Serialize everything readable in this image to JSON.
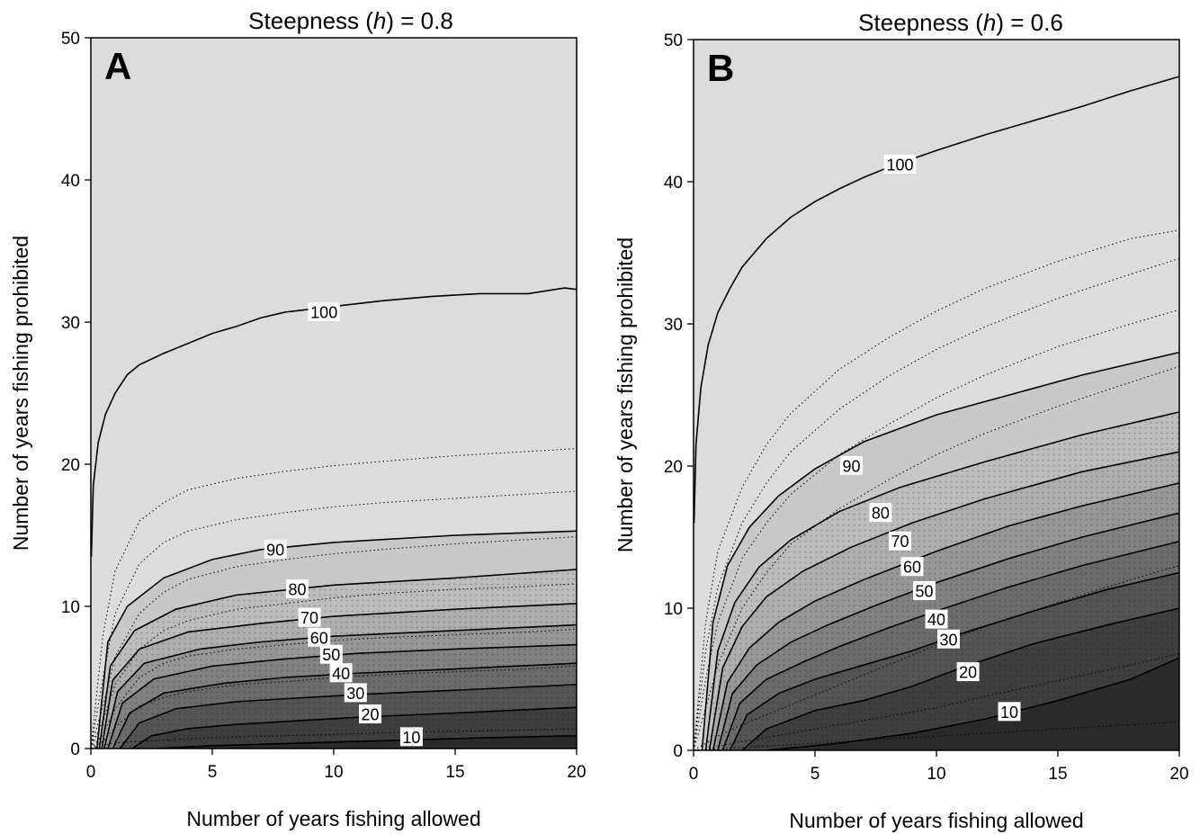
{
  "colors": {
    "background": "#ffffff",
    "frame": "#000000",
    "band_fills": [
      "#2a2a2a",
      "#3f3f3f",
      "#545454",
      "#6b6b6b",
      "#818181",
      "#979797",
      "#adadad",
      "#bdbdbd",
      "#c8c8c8",
      "#dcdcdc"
    ]
  },
  "chart_data": [
    {
      "type": "contour",
      "panel_letter": "A",
      "title_prefix": "Steepness (",
      "title_var": "h",
      "title_suffix": ") = 0.8",
      "xlabel": "Number of years fishing allowed",
      "ylabel": "Number of years fishing prohibited",
      "xlim": [
        0,
        20
      ],
      "ylim": [
        0,
        50
      ],
      "xticks": [
        0,
        5,
        10,
        15,
        20
      ],
      "yticks": [
        0,
        10,
        20,
        30,
        40,
        50
      ],
      "fill_levels": [
        10,
        20,
        30,
        40,
        50,
        60,
        70,
        80,
        90,
        100
      ],
      "contour_levels": [
        {
          "label": "10",
          "x": [
            2.7,
            5,
            8,
            10,
            13,
            16,
            20
          ],
          "y": [
            0,
            0.2,
            0.35,
            0.45,
            0.6,
            0.75,
            0.9
          ]
        },
        {
          "label": "20",
          "x": [
            1.7,
            2.5,
            4,
            6,
            8,
            11,
            15,
            20
          ],
          "y": [
            0,
            0.9,
            1.4,
            1.7,
            1.9,
            2.2,
            2.5,
            2.9
          ]
        },
        {
          "label": "30",
          "x": [
            1.2,
            2,
            3.5,
            6,
            9,
            11,
            15,
            20
          ],
          "y": [
            0,
            1.8,
            2.8,
            3.3,
            3.6,
            3.8,
            4.1,
            4.5
          ]
        },
        {
          "label": "40",
          "x": [
            0.9,
            1.6,
            3,
            5.5,
            8,
            11,
            15,
            20
          ],
          "y": [
            0,
            2.5,
            3.9,
            4.6,
            5.0,
            5.3,
            5.6,
            6.0
          ]
        },
        {
          "label": "50",
          "x": [
            0.7,
            1.3,
            2.6,
            5,
            8,
            11,
            15,
            20
          ],
          "y": [
            0,
            3.2,
            4.9,
            5.8,
            6.3,
            6.7,
            7.0,
            7.3
          ]
        },
        {
          "label": "60",
          "x": [
            0.55,
            1.1,
            2.2,
            4.5,
            7,
            10,
            15,
            20
          ],
          "y": [
            0,
            4.0,
            6.0,
            7.0,
            7.5,
            7.9,
            8.3,
            8.7
          ]
        },
        {
          "label": "70",
          "x": [
            0.45,
            0.9,
            2,
            4,
            7,
            10,
            15,
            20
          ],
          "y": [
            0,
            4.8,
            7.0,
            8.2,
            8.8,
            9.3,
            9.8,
            10.2
          ]
        },
        {
          "label": "80",
          "x": [
            0.35,
            0.8,
            1.8,
            3.5,
            6,
            10,
            15,
            20
          ],
          "y": [
            0,
            5.8,
            8.3,
            9.8,
            10.8,
            11.5,
            12.0,
            12.6
          ]
        },
        {
          "label": "90",
          "x": [
            0.25,
            0.7,
            1.5,
            3,
            5,
            7,
            10,
            15,
            20
          ],
          "y": [
            0,
            7.5,
            10.0,
            12.0,
            13.3,
            14.0,
            14.5,
            15.0,
            15.3
          ]
        },
        {
          "label": "100",
          "x": [
            0.02,
            0.1,
            0.3,
            0.6,
            1,
            1.5,
            2,
            3,
            4,
            5,
            6,
            7,
            8,
            9,
            10,
            12,
            14,
            16,
            18,
            19.5,
            20
          ],
          "y": [
            13.5,
            18.5,
            21.5,
            23.5,
            25.0,
            26.3,
            27.0,
            27.8,
            28.5,
            29.2,
            29.7,
            30.3,
            30.7,
            30.9,
            31.1,
            31.5,
            31.8,
            32.0,
            32.0,
            32.4,
            32.3
          ]
        }
      ],
      "minor_levels": {
        "x": [
          0,
          0.5,
          1,
          2,
          3,
          4,
          6,
          8,
          10,
          12,
          15,
          18,
          20
        ],
        "y": [
          [
            0,
            0.25,
            0.4,
            0.5,
            0.6,
            0.7,
            0.8,
            0.9,
            1.0,
            1.1,
            1.2,
            1.3,
            1.4
          ],
          [
            0,
            0.5,
            1.5,
            3.0,
            3.6,
            4.0,
            4.5,
            4.7,
            5.0,
            5.2,
            5.4,
            5.6,
            5.8
          ],
          [
            0,
            1.0,
            2.8,
            5.0,
            6.0,
            6.5,
            7.0,
            7.3,
            7.6,
            7.8,
            8.0,
            8.2,
            8.4
          ],
          [
            0,
            2.0,
            4.5,
            7.0,
            8.3,
            9.0,
            9.8,
            10.2,
            10.6,
            10.9,
            11.2,
            11.4,
            11.6
          ],
          [
            0,
            3.0,
            6.5,
            9.5,
            11.0,
            11.9,
            12.8,
            13.3,
            13.7,
            14.0,
            14.4,
            14.7,
            14.9
          ],
          [
            0,
            5.0,
            9.5,
            13.0,
            14.5,
            15.3,
            16.1,
            16.6,
            17.0,
            17.3,
            17.6,
            17.9,
            18.1
          ],
          [
            0,
            8.0,
            12.5,
            16.0,
            17.3,
            18.2,
            19.0,
            19.5,
            19.9,
            20.2,
            20.6,
            20.9,
            21.1
          ]
        ]
      },
      "label_positions": {
        "100": [
          9.6,
          30.7
        ],
        "90": [
          7.6,
          14.0
        ],
        "80": [
          8.5,
          11.2
        ],
        "70": [
          9.0,
          9.2
        ],
        "60": [
          9.4,
          7.8
        ],
        "50": [
          9.9,
          6.6
        ],
        "40": [
          10.3,
          5.3
        ],
        "30": [
          10.9,
          3.9
        ],
        "20": [
          11.5,
          2.4
        ],
        "10": [
          13.2,
          0.8
        ]
      }
    },
    {
      "type": "contour",
      "panel_letter": "B",
      "title_prefix": "Steepness (",
      "title_var": "h",
      "title_suffix": ") = 0.6",
      "xlabel": "Number of years fishing allowed",
      "ylabel": "Number of years fishing prohibited",
      "xlim": [
        0,
        20
      ],
      "ylim": [
        0,
        50
      ],
      "xticks": [
        0,
        5,
        10,
        15,
        20
      ],
      "yticks": [
        0,
        10,
        20,
        30,
        40,
        50
      ],
      "fill_levels": [
        10,
        20,
        30,
        40,
        50,
        60,
        70,
        80,
        90,
        100
      ],
      "contour_levels": [
        {
          "label": "10",
          "x": [
            3.0,
            6,
            9,
            12,
            15,
            18,
            20
          ],
          "y": [
            0,
            0.5,
            1.2,
            2.2,
            3.5,
            5.0,
            6.5
          ]
        },
        {
          "label": "20",
          "x": [
            2.0,
            3,
            5,
            7,
            9,
            11,
            14,
            17,
            20
          ],
          "y": [
            0,
            1.5,
            2.8,
            3.5,
            4.5,
            5.8,
            7.5,
            8.8,
            10.0
          ]
        },
        {
          "label": "30",
          "x": [
            1.5,
            2.2,
            3.5,
            5,
            7,
            9,
            11,
            14,
            17,
            20
          ],
          "y": [
            0,
            2.5,
            4.0,
            5.0,
            6.0,
            7.0,
            8.2,
            9.8,
            11.3,
            12.5
          ]
        },
        {
          "label": "40",
          "x": [
            1.2,
            1.9,
            3,
            4.5,
            6,
            8,
            10,
            13,
            16,
            20
          ],
          "y": [
            0,
            3.3,
            5.0,
            6.2,
            7.3,
            8.6,
            9.8,
            11.5,
            13.0,
            14.7
          ]
        },
        {
          "label": "50",
          "x": [
            1.0,
            1.6,
            2.6,
            4,
            5.5,
            7.5,
            10,
            13,
            16,
            20
          ],
          "y": [
            0,
            4.0,
            6.0,
            7.6,
            8.8,
            10.2,
            11.8,
            13.5,
            15.0,
            16.7
          ]
        },
        {
          "label": "60",
          "x": [
            0.8,
            1.4,
            2.3,
            3.5,
            5,
            7,
            10,
            13,
            16,
            20
          ],
          "y": [
            0,
            4.8,
            7.2,
            9.0,
            10.5,
            12.0,
            14.0,
            15.8,
            17.2,
            18.8
          ]
        },
        {
          "label": "70",
          "x": [
            0.65,
            1.2,
            2,
            3,
            4.5,
            6.5,
            9,
            12,
            16,
            20
          ],
          "y": [
            0,
            5.8,
            8.7,
            10.8,
            12.6,
            14.3,
            16.0,
            17.7,
            19.6,
            21.0
          ]
        },
        {
          "label": "80",
          "x": [
            0.5,
            1.0,
            1.7,
            2.7,
            4,
            6,
            8.5,
            12,
            16,
            20
          ],
          "y": [
            0,
            7.0,
            10.4,
            12.9,
            14.8,
            16.8,
            18.5,
            20.3,
            22.2,
            23.8
          ]
        },
        {
          "label": "90",
          "x": [
            0.35,
            0.8,
            1.4,
            2.3,
            3.5,
            5,
            7,
            10,
            13,
            16,
            20
          ],
          "y": [
            0,
            9.0,
            13.0,
            15.7,
            17.9,
            19.8,
            21.7,
            23.6,
            25.0,
            26.4,
            28.0
          ]
        },
        {
          "label": "100",
          "x": [
            0.02,
            0.1,
            0.3,
            0.6,
            1,
            1.5,
            2,
            3,
            4,
            5,
            6,
            7,
            8,
            9,
            10,
            12,
            14,
            16,
            18,
            20
          ],
          "y": [
            16.0,
            21.5,
            25.5,
            28.5,
            30.8,
            32.5,
            34.0,
            36.0,
            37.5,
            38.6,
            39.5,
            40.3,
            41.0,
            41.6,
            42.2,
            43.3,
            44.3,
            45.3,
            46.4,
            47.4
          ]
        }
      ],
      "minor_levels": {
        "x": [
          0,
          0.5,
          1,
          2,
          3,
          4,
          6,
          8,
          10,
          12,
          15,
          18,
          20
        ],
        "y": [
          [
            0,
            0.05,
            0.1,
            0.2,
            0.3,
            0.4,
            0.6,
            0.8,
            1.0,
            1.2,
            1.5,
            1.8,
            2.0
          ],
          [
            0,
            0.1,
            0.3,
            0.6,
            0.9,
            1.2,
            1.8,
            2.4,
            3.0,
            3.8,
            4.9,
            6.0,
            6.8
          ],
          [
            0,
            0.5,
            1.0,
            1.8,
            2.5,
            3.2,
            4.6,
            6.0,
            7.4,
            8.7,
            10.4,
            12.0,
            13.0
          ],
          [
            0,
            3.0,
            6.0,
            10.0,
            12.5,
            14.5,
            17.0,
            19.0,
            20.8,
            22.3,
            24.2,
            25.9,
            27.0
          ],
          [
            0,
            5.0,
            9.0,
            13.5,
            16.0,
            18.0,
            20.8,
            22.9,
            24.8,
            26.4,
            28.4,
            30.0,
            31.0
          ],
          [
            0,
            7.0,
            11.5,
            16.0,
            18.8,
            21.0,
            24.0,
            26.3,
            28.2,
            29.8,
            31.8,
            33.5,
            34.6
          ],
          [
            0,
            9.0,
            14.0,
            18.5,
            21.5,
            23.7,
            26.8,
            29.0,
            30.9,
            32.5,
            34.4,
            36.0,
            36.6
          ]
        ]
      },
      "label_positions": {
        "100": [
          8.5,
          41.2
        ],
        "90": [
          6.5,
          20.0
        ],
        "80": [
          7.7,
          16.7
        ],
        "70": [
          8.5,
          14.7
        ],
        "60": [
          9.0,
          12.9
        ],
        "50": [
          9.5,
          11.2
        ],
        "40": [
          10.0,
          9.2
        ],
        "30": [
          10.5,
          7.8
        ],
        "20": [
          11.3,
          5.5
        ],
        "10": [
          13.0,
          2.7
        ]
      }
    }
  ]
}
